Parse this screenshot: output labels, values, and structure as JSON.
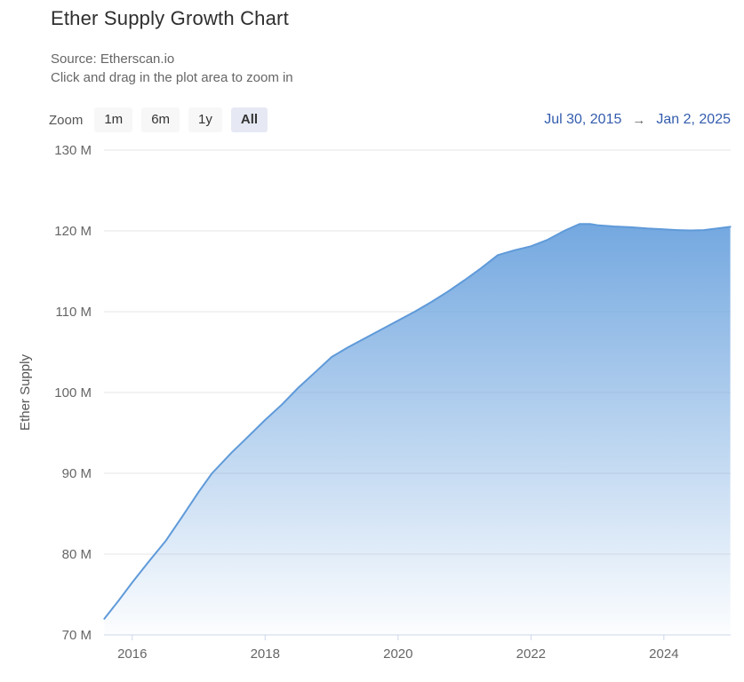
{
  "header": {
    "title": "Ether Supply Growth Chart",
    "source": "Source: Etherscan.io",
    "hint": "Click and drag in the plot area to zoom in"
  },
  "toolbar": {
    "zoom_label": "Zoom",
    "buttons": [
      {
        "label": "1m",
        "selected": false
      },
      {
        "label": "6m",
        "selected": false
      },
      {
        "label": "1y",
        "selected": false
      },
      {
        "label": "All",
        "selected": true
      }
    ],
    "range_from": "Jul 30, 2015",
    "range_arrow": "→",
    "range_to": "Jan 2, 2025"
  },
  "chart_data": {
    "type": "area",
    "title": "Ether Supply Growth Chart",
    "xlabel": "",
    "ylabel": "Ether Supply",
    "xlim": [
      2015.575,
      2025.005
    ],
    "ylim": [
      70,
      130
    ],
    "grid": true,
    "legend": "none",
    "yticks": [
      {
        "v": 70,
        "label": "70 M"
      },
      {
        "v": 80,
        "label": "80 M"
      },
      {
        "v": 90,
        "label": "90 M"
      },
      {
        "v": 100,
        "label": "100 M"
      },
      {
        "v": 110,
        "label": "110 M"
      },
      {
        "v": 120,
        "label": "120 M"
      },
      {
        "v": 130,
        "label": "130 M"
      }
    ],
    "xticks": [
      {
        "v": 2016,
        "label": "2016"
      },
      {
        "v": 2018,
        "label": "2018"
      },
      {
        "v": 2020,
        "label": "2020"
      },
      {
        "v": 2022,
        "label": "2022"
      },
      {
        "v": 2024,
        "label": "2024"
      }
    ],
    "series": [
      {
        "name": "Ether Supply (millions)",
        "x": [
          2015.58,
          2015.8,
          2016.0,
          2016.25,
          2016.5,
          2016.75,
          2017.0,
          2017.2,
          2017.5,
          2017.7,
          2018.0,
          2018.25,
          2018.5,
          2018.75,
          2019.0,
          2019.25,
          2019.5,
          2019.75,
          2020.0,
          2020.25,
          2020.5,
          2020.75,
          2021.0,
          2021.25,
          2021.5,
          2021.75,
          2022.0,
          2022.25,
          2022.5,
          2022.73,
          2022.9,
          2023.0,
          2023.25,
          2023.5,
          2023.75,
          2024.0,
          2024.2,
          2024.4,
          2024.6,
          2024.8,
          2025.0
        ],
        "y": [
          72.0,
          74.3,
          76.5,
          79.1,
          81.6,
          84.6,
          87.7,
          90.0,
          92.6,
          94.2,
          96.6,
          98.5,
          100.6,
          102.5,
          104.4,
          105.6,
          106.7,
          107.8,
          108.9,
          110.0,
          111.2,
          112.5,
          113.9,
          115.4,
          117.0,
          117.6,
          118.1,
          118.9,
          120.0,
          120.85,
          120.85,
          120.7,
          120.55,
          120.45,
          120.3,
          120.2,
          120.1,
          120.05,
          120.1,
          120.3,
          120.5
        ]
      }
    ],
    "colors": {
      "line": "#5f9ad9",
      "fill_top": "#74a8e0",
      "grid": "#e6e6e6",
      "axis_line": "#ccd6eb",
      "tick_text": "#666666",
      "axis_title_text": "#555555",
      "range_text": "#335cad"
    }
  }
}
